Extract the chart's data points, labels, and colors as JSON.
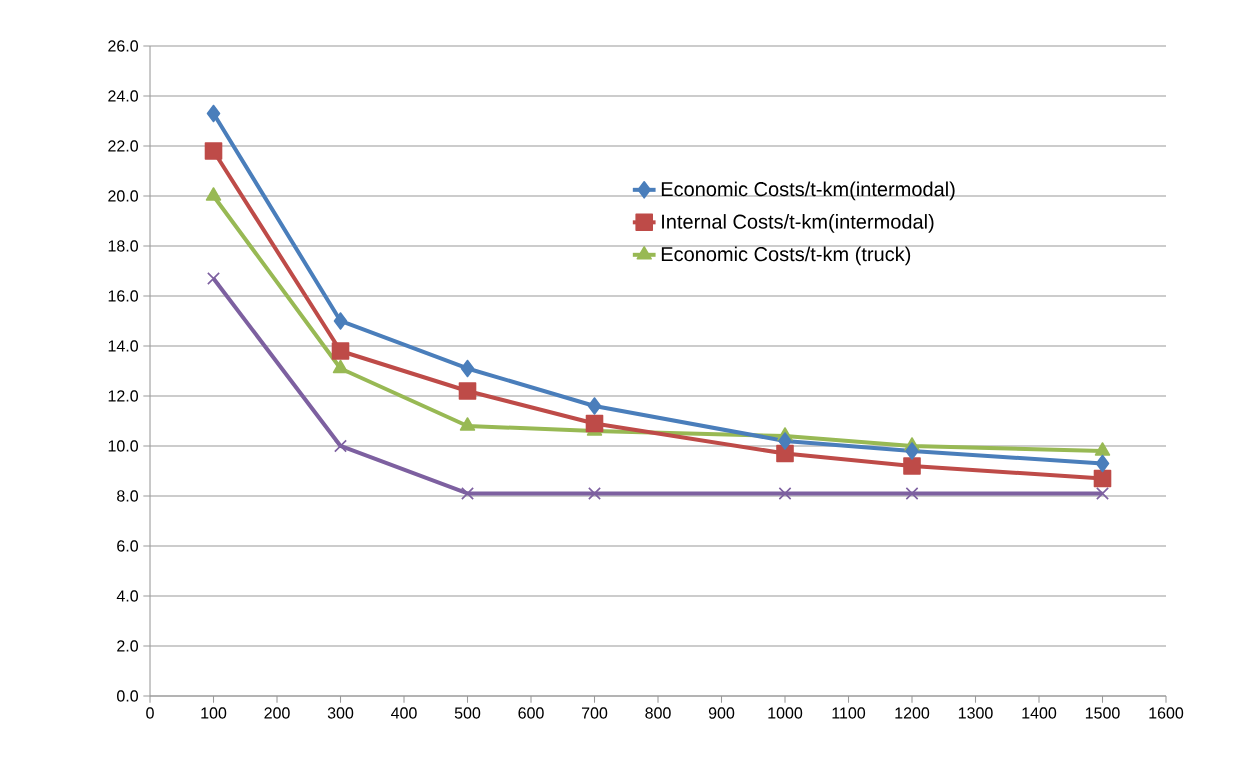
{
  "chart_data": {
    "type": "line",
    "x": [
      100,
      300,
      500,
      700,
      1000,
      1200,
      1500
    ],
    "series": [
      {
        "name": "Economic Costs/t-km(intermodal)",
        "color": "#4a7ebb",
        "marker": "diamond",
        "values": [
          23.3,
          15.0,
          13.1,
          11.6,
          10.2,
          9.8,
          9.3
        ]
      },
      {
        "name": "Internal Costs/t-km(intermodal)",
        "color": "#be4b48",
        "marker": "square",
        "values": [
          21.8,
          13.8,
          12.2,
          10.9,
          9.7,
          9.2,
          8.7
        ]
      },
      {
        "name": "Economic Costs/t-km (truck)",
        "color": "#98b954",
        "marker": "triangle",
        "values": [
          20.0,
          13.1,
          10.8,
          10.6,
          10.4,
          10.0,
          9.8
        ]
      },
      {
        "color": "#7d60a0",
        "marker": "cross",
        "values": [
          16.7,
          10.0,
          8.1,
          8.1,
          8.1,
          8.1,
          8.1
        ]
      }
    ],
    "xlim": [
      0,
      1600
    ],
    "xticks": [
      0,
      100,
      200,
      300,
      400,
      500,
      600,
      700,
      800,
      900,
      1000,
      1100,
      1200,
      1300,
      1400,
      1500,
      1600
    ],
    "ylim": [
      0,
      26
    ],
    "yticks": [
      {
        "value": 0,
        "label": "0.0"
      },
      {
        "value": 2,
        "label": "2.0"
      },
      {
        "value": 4,
        "label": "4.0"
      },
      {
        "value": 6,
        "label": "6.0"
      },
      {
        "value": 8,
        "label": "8.0"
      },
      {
        "value": 10,
        "label": "10.0"
      },
      {
        "value": 12,
        "label": "12.0"
      },
      {
        "value": 14,
        "label": "14.0"
      },
      {
        "value": 16,
        "label": "16.0"
      },
      {
        "value": 18,
        "label": "18.0"
      },
      {
        "value": 20,
        "label": "20.0"
      },
      {
        "value": 22,
        "label": "22.0"
      },
      {
        "value": 24,
        "label": "24.0"
      },
      {
        "value": 26,
        "label": "26.0"
      }
    ],
    "grid": "y",
    "legend": "top right",
    "line_style": "solid"
  }
}
